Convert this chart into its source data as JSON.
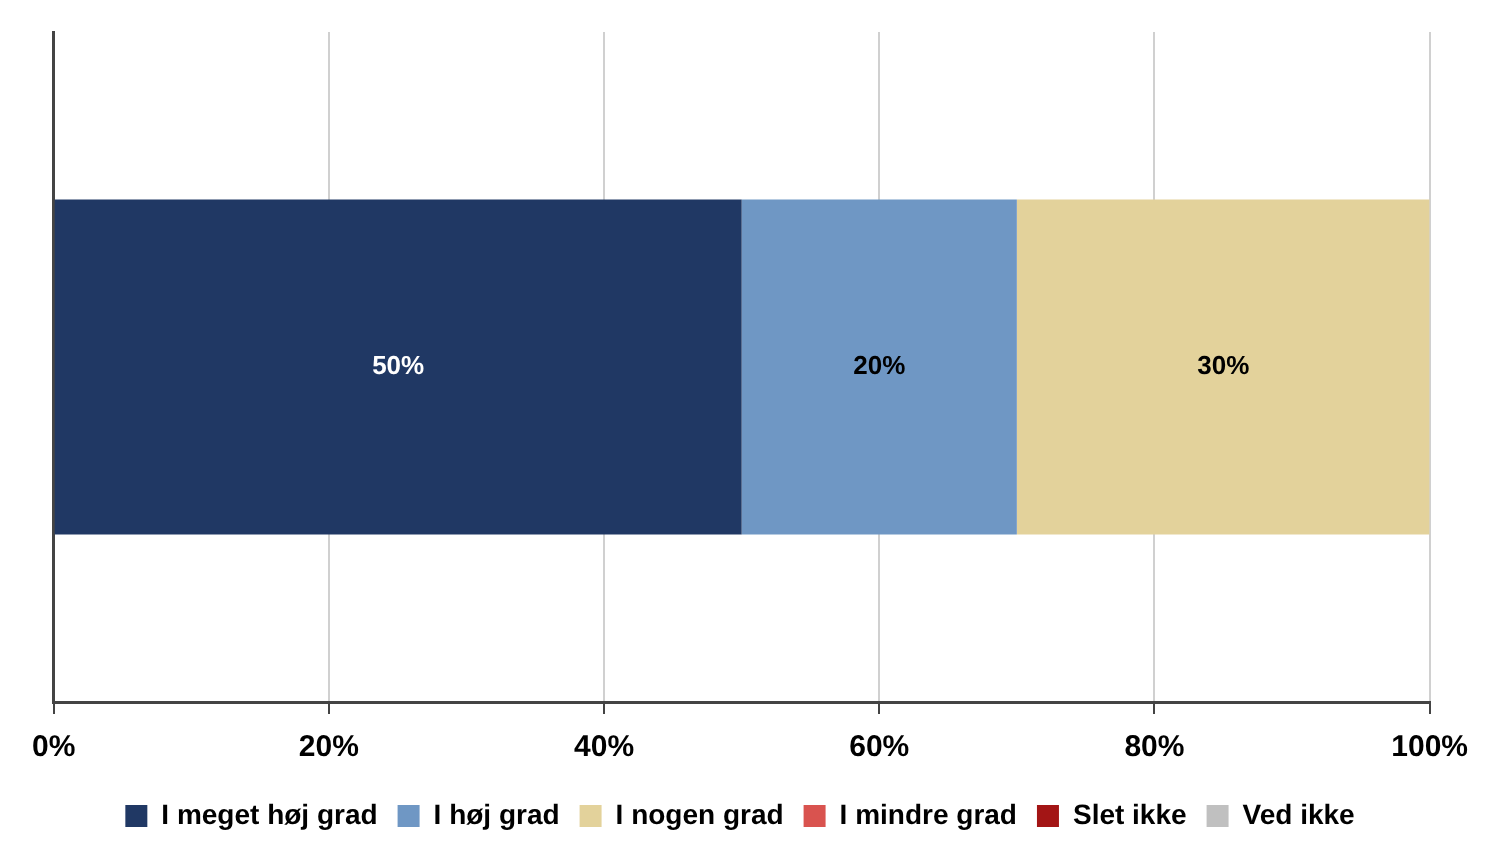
{
  "chart_data": {
    "type": "bar",
    "orientation": "horizontal",
    "stacked": true,
    "categories": [
      null
    ],
    "series": [
      {
        "name": "I meget høj grad",
        "color": "#203864",
        "values": [
          50
        ],
        "value_labels": [
          "50%"
        ]
      },
      {
        "name": "I høj grad",
        "color": "#6f97c4",
        "values": [
          20
        ],
        "value_labels": [
          "20%"
        ]
      },
      {
        "name": "I nogen grad",
        "color": "#e3d29b",
        "values": [
          30
        ],
        "value_labels": [
          "30%"
        ]
      },
      {
        "name": "I mindre grad",
        "color": "#d9534f",
        "values": [
          0
        ],
        "value_labels": [
          null
        ]
      },
      {
        "name": "Slet ikke",
        "color": "#a31515",
        "values": [
          0
        ],
        "value_labels": [
          null
        ]
      },
      {
        "name": "Ved ikke",
        "color": "#c0c0c0",
        "values": [
          0
        ],
        "value_labels": [
          null
        ]
      }
    ],
    "xlim": [
      0,
      100
    ],
    "xticks": [
      {
        "value": 0,
        "label": "0%"
      },
      {
        "value": 20,
        "label": "20%"
      },
      {
        "value": 40,
        "label": "40%"
      },
      {
        "value": 60,
        "label": "60%"
      },
      {
        "value": 80,
        "label": "80%"
      },
      {
        "value": 100,
        "label": "100%"
      }
    ],
    "grid": "x",
    "legend": "bottom"
  }
}
